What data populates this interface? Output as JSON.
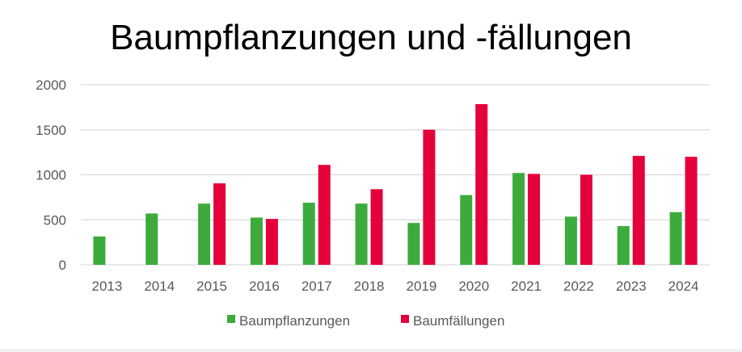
{
  "chart_data": {
    "type": "bar",
    "title": "Baumpflanzungen und -fällungen",
    "categories": [
      "2013",
      "2014",
      "2015",
      "2016",
      "2017",
      "2018",
      "2019",
      "2020",
      "2021",
      "2022",
      "2023",
      "2024"
    ],
    "series": [
      {
        "name": "Baumpflanzungen",
        "color": "#3cab3c",
        "values": [
          315,
          570,
          680,
          525,
          690,
          680,
          465,
          775,
          1020,
          535,
          430,
          585
        ]
      },
      {
        "name": "Baumfällungen",
        "color": "#e4003a",
        "values": [
          0,
          0,
          905,
          510,
          1110,
          840,
          1500,
          1785,
          1010,
          1000,
          1210,
          1200
        ]
      }
    ],
    "yticks": [
      "0",
      "500",
      "1000",
      "1500",
      "2000"
    ],
    "ylim": [
      0,
      2000
    ],
    "grid": true,
    "legend_position": "bottom"
  }
}
